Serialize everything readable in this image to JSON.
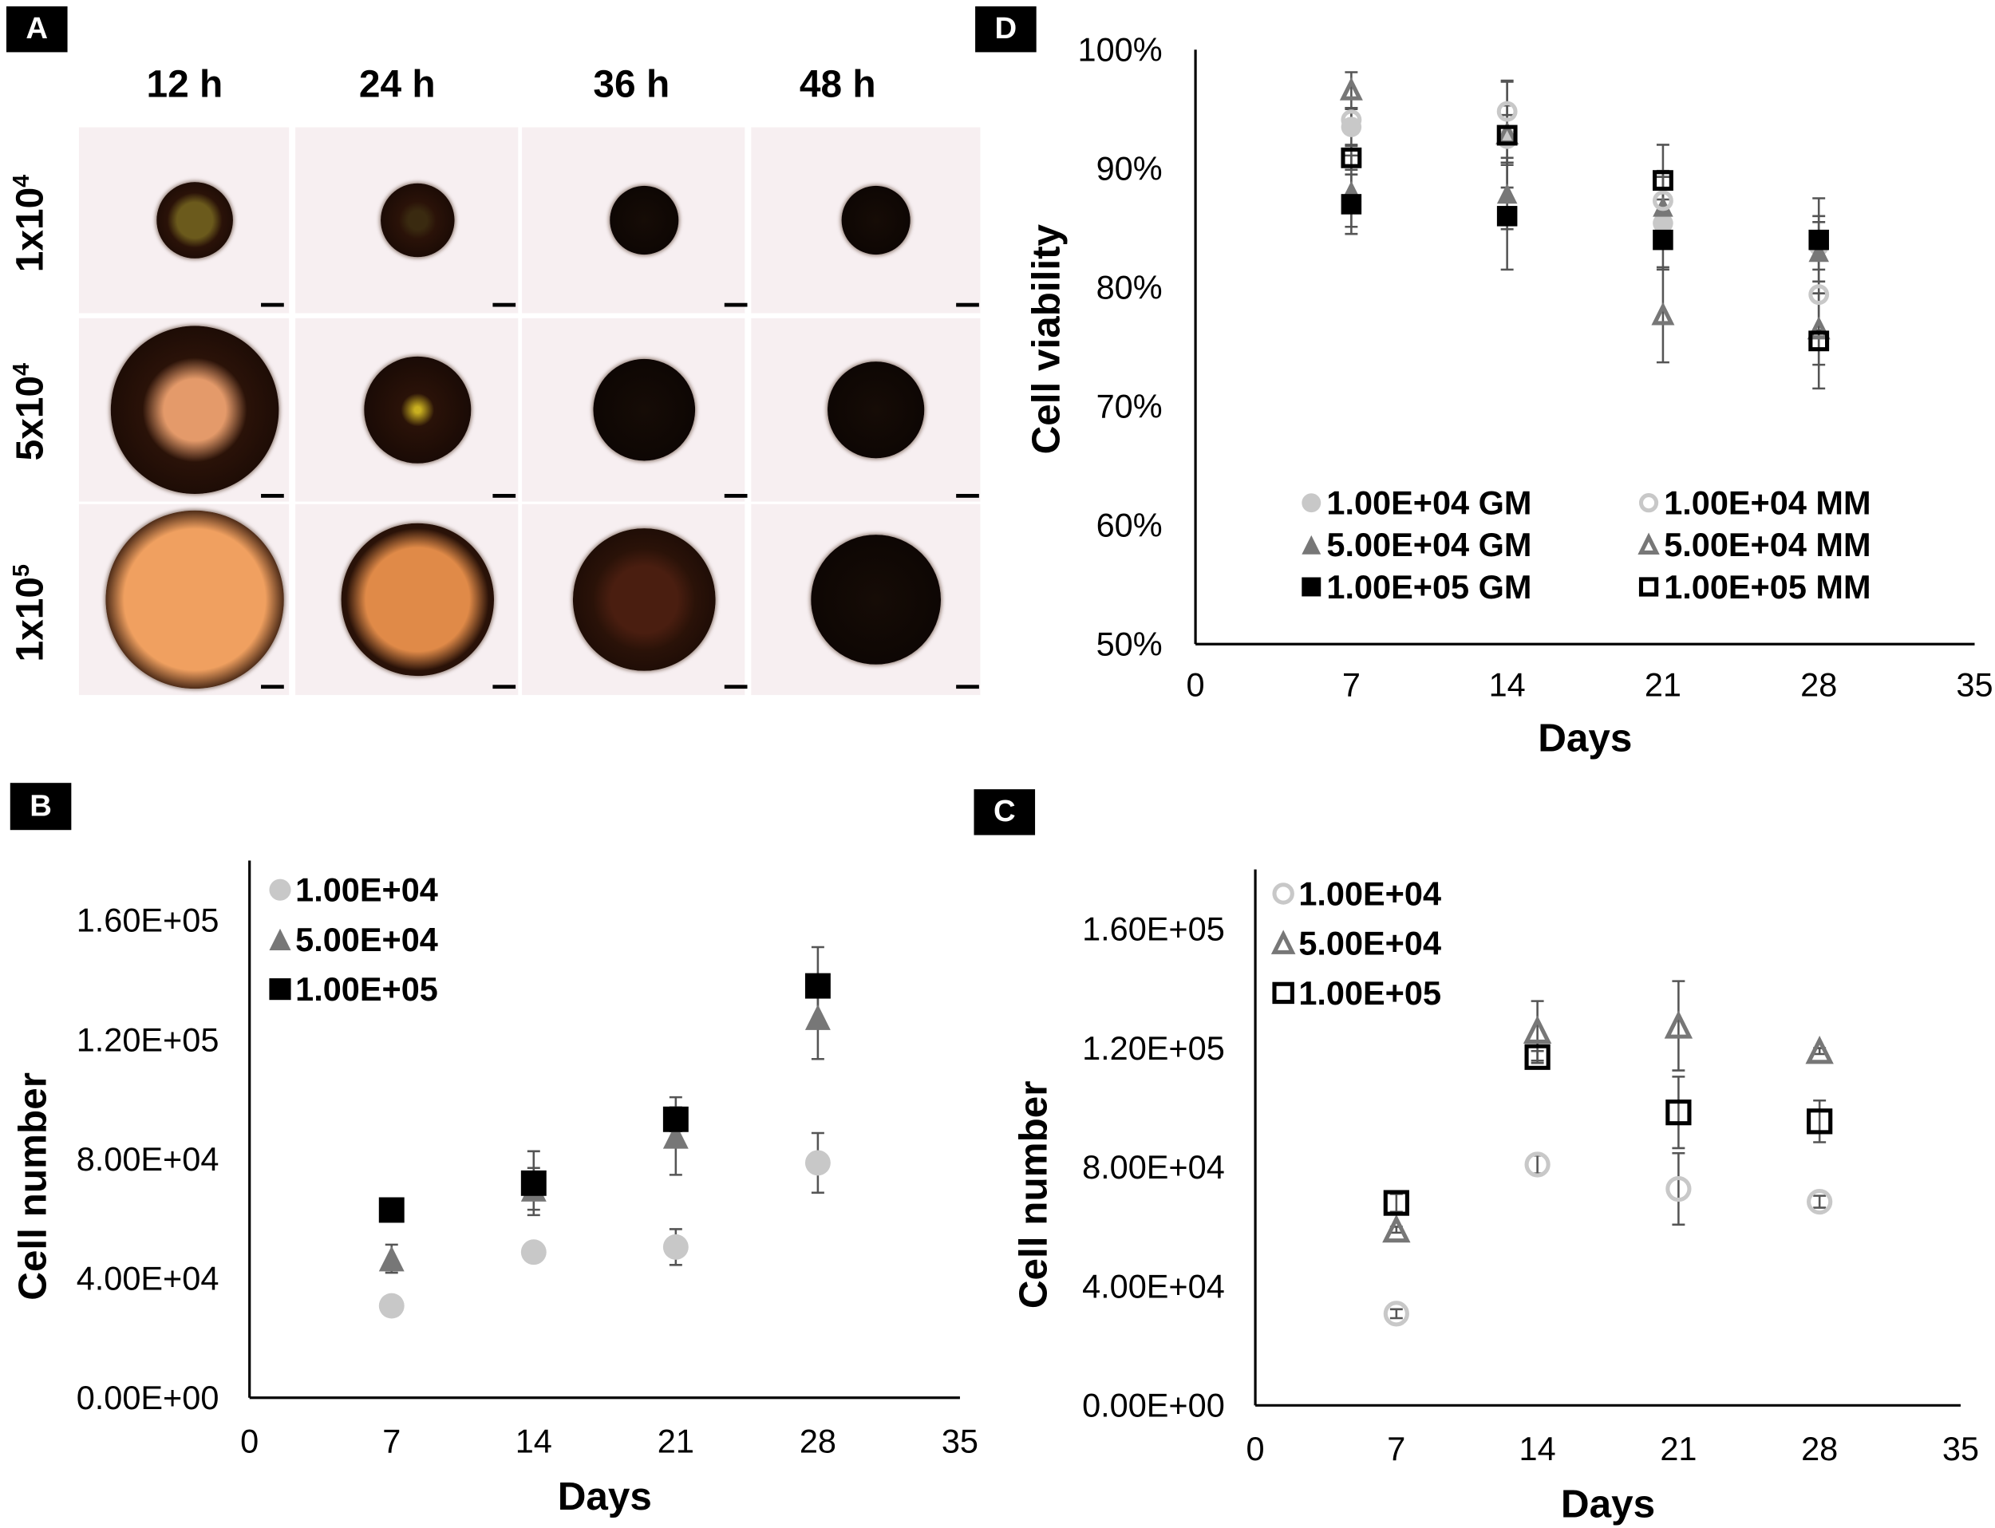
{
  "panels": {
    "a": "A",
    "b": "B",
    "c": "C",
    "d": "D"
  },
  "panel_a": {
    "columns": [
      "12 h",
      "24 h",
      "36 h",
      "48 h"
    ],
    "rows": [
      {
        "base": "1x10",
        "exp": "4"
      },
      {
        "base": "5x10",
        "exp": "4"
      },
      {
        "base": "1x10",
        "exp": "5"
      }
    ]
  },
  "chart_data": [
    {
      "id": "B",
      "type": "scatter",
      "xlabel": "Days",
      "ylabel": "Cell number",
      "xlim": [
        0,
        35
      ],
      "xticks": [
        0,
        7,
        14,
        21,
        28,
        35
      ],
      "ylim": [
        0,
        180000
      ],
      "yticks": [
        0,
        40000,
        80000,
        120000,
        160000
      ],
      "ytick_labels": [
        "0.00E+00",
        "4.00E+04",
        "8.00E+04",
        "1.20E+05",
        "1.60E+05"
      ],
      "x": [
        7,
        14,
        21,
        28
      ],
      "legend_position": "top-left",
      "series": [
        {
          "name": "1.00E+04",
          "marker": "circle-filled",
          "color": "#c8c8c8",
          "values": [
            30800,
            48800,
            50500,
            78700
          ],
          "errors": [
            0,
            2500,
            6000,
            10000
          ]
        },
        {
          "name": "5.00E+04",
          "marker": "triangle-filled",
          "color": "#777777",
          "values": [
            46600,
            70000,
            87700,
            127500
          ],
          "errors": [
            4700,
            7000,
            13000,
            14000
          ]
        },
        {
          "name": "1.00E+05",
          "marker": "square-filled",
          "color": "#000000",
          "values": [
            62900,
            71900,
            93300,
            138000
          ],
          "errors": [
            0,
            10700,
            4000,
            13000
          ]
        }
      ]
    },
    {
      "id": "C",
      "type": "scatter",
      "xlabel": "Days",
      "ylabel": "Cell number",
      "xlim": [
        0,
        35
      ],
      "xticks": [
        0,
        7,
        14,
        21,
        28,
        35
      ],
      "ylim": [
        0,
        180000
      ],
      "yticks": [
        0,
        40000,
        80000,
        120000,
        160000
      ],
      "ytick_labels": [
        "0.00E+00",
        "4.00E+04",
        "8.00E+04",
        "1.20E+05",
        "1.60E+05"
      ],
      "x": [
        7,
        14,
        21,
        28
      ],
      "legend_position": "top-left",
      "series": [
        {
          "name": "1.00E+04",
          "marker": "circle-open",
          "color": "#c8c8c8",
          "values": [
            30800,
            80900,
            72700,
            68400
          ],
          "errors": [
            1500,
            3000,
            12000,
            2000
          ]
        },
        {
          "name": "5.00E+04",
          "marker": "triangle-open",
          "color": "#777777",
          "values": [
            59000,
            125800,
            127500,
            119000
          ],
          "errors": [
            1000,
            10000,
            15000,
            1000
          ]
        },
        {
          "name": "1.00E+05",
          "marker": "square-open",
          "color": "#000000",
          "values": [
            68000,
            117000,
            98400,
            95400
          ],
          "errors": [
            3000,
            2000,
            12000,
            7000
          ]
        }
      ]
    },
    {
      "id": "D",
      "type": "scatter",
      "xlabel": "Days",
      "ylabel": "Cell viability",
      "xlim": [
        0,
        35
      ],
      "xticks": [
        0,
        7,
        14,
        21,
        28,
        35
      ],
      "ylim": [
        50,
        100
      ],
      "yticks": [
        50,
        60,
        70,
        80,
        90,
        100
      ],
      "ytick_labels": [
        "50%",
        "60%",
        "70%",
        "80%",
        "90%",
        "100%"
      ],
      "x": [
        7,
        14,
        21,
        28
      ],
      "legend_position": "bottom-center",
      "series": [
        {
          "name": "1.00E+04 GM",
          "marker": "circle-filled",
          "color": "#c8c8c8",
          "values": [
            93.5,
            92.5,
            85.4,
            83.5
          ],
          "errors": [
            1.5,
            2,
            2,
            2
          ]
        },
        {
          "name": "5.00E+04 GM",
          "marker": "triangle-filled",
          "color": "#777777",
          "values": [
            88.1,
            87.9,
            86.8,
            83.0
          ],
          "errors": [
            3,
            3,
            3,
            3
          ]
        },
        {
          "name": "1.00E+05 GM",
          "marker": "square-filled",
          "color": "#000000",
          "values": [
            87.0,
            86.0,
            84.0,
            84.0
          ],
          "errors": [
            2.5,
            4.5,
            2.5,
            3.5
          ]
        },
        {
          "name": "1.00E+04 MM",
          "marker": "circle-open",
          "color": "#c8c8c8",
          "values": [
            94.1,
            94.8,
            87.3,
            79.4
          ],
          "errors": [
            1,
            2.5,
            2,
            3
          ]
        },
        {
          "name": "5.00E+04 MM",
          "marker": "triangle-open",
          "color": "#777777",
          "values": [
            96.6,
            92.9,
            77.7,
            76.5
          ],
          "errors": [
            1.5,
            4.5,
            4,
            3
          ]
        },
        {
          "name": "1.00E+05 MM",
          "marker": "square-open",
          "color": "#000000",
          "values": [
            90.9,
            92.8,
            89.0,
            75.5
          ],
          "errors": [
            1,
            2.5,
            3,
            4
          ]
        }
      ]
    }
  ]
}
